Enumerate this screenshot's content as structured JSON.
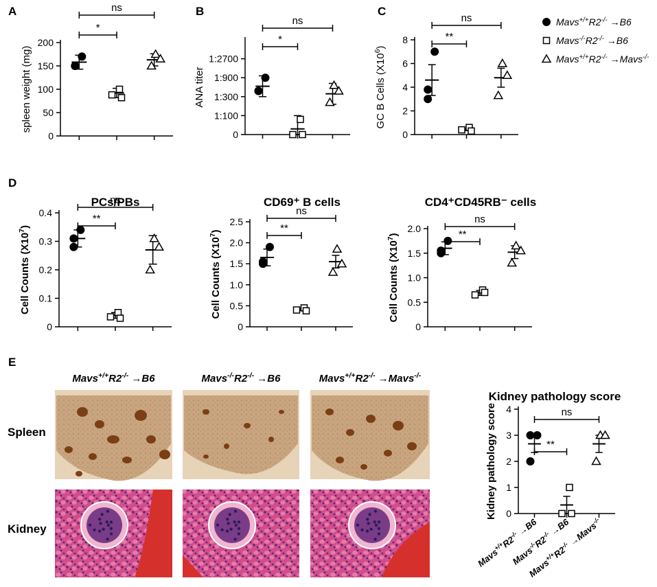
{
  "legend": [
    {
      "marker": "filled-circle",
      "label": "Mavs+/+R2-/- →B6"
    },
    {
      "marker": "open-square",
      "label": "Mavs-/-R2-/- →B6"
    },
    {
      "marker": "open-triangle",
      "label": "Mavs+/+R2-/- →Mavs-/-"
    }
  ],
  "panel_e": {
    "letter": "E",
    "group_headers": [
      "Mavs+/+R2-/- →B6",
      "Mavs-/-R2-/- →B6",
      "Mavs+/+R2-/- →Mavs-/-"
    ],
    "row_labels": [
      "Spleen",
      "Kidney"
    ]
  },
  "colors": {
    "marker": "#000000",
    "spleen_bg": "#e8d7bf",
    "spleen_tissue": "#c7a27c",
    "spleen_follicle": "#7a3f14",
    "kidney_bg": "#c93a7c",
    "kidney_tubule": "#e06a9e",
    "kidney_nuclei": "#4a2a7a",
    "kidney_rbc": "#d8322e"
  },
  "chart_data": [
    {
      "id": "A",
      "type": "scatter",
      "letter": "A",
      "title": "",
      "xlabel": "",
      "ylabel": "spleen weight (mg)",
      "ylim": [
        0,
        200
      ],
      "yticks": [
        0,
        50,
        100,
        150,
        200
      ],
      "ytick_labels": [
        "0",
        "50",
        "100",
        "150",
        "200"
      ],
      "groups": [
        {
          "marker": "filled-circle",
          "values": [
            170,
            150,
            150
          ],
          "mean": 158,
          "sem": 15
        },
        {
          "marker": "open-square",
          "values": [
            100,
            88,
            82
          ],
          "mean": 92,
          "sem": 10
        },
        {
          "marker": "open-triangle",
          "values": [
            175,
            165,
            150
          ],
          "mean": 163,
          "sem": 13
        }
      ],
      "comparisons": [
        {
          "from": 0,
          "to": 1,
          "label": "*"
        },
        {
          "from": 0,
          "to": 2,
          "label": "ns"
        }
      ]
    },
    {
      "id": "B",
      "type": "scatter",
      "letter": "B",
      "title": "",
      "xlabel": "",
      "ylabel": "ANA titer",
      "ylim": [
        0,
        5
      ],
      "yticks": [
        0,
        1,
        2,
        3,
        4
      ],
      "ytick_labels": [
        "0",
        "1:100",
        "1:300",
        "1:900",
        "1:2700"
      ],
      "groups": [
        {
          "marker": "filled-circle",
          "values": [
            3.0,
            2.3,
            2.3
          ],
          "mean": 2.55,
          "sem": 0.55
        },
        {
          "marker": "open-square",
          "values": [
            0.8,
            0.0,
            0.0
          ],
          "mean": 0.3,
          "sem": 0.7
        },
        {
          "marker": "open-triangle",
          "values": [
            2.6,
            2.3,
            1.7
          ],
          "mean": 2.15,
          "sem": 0.55
        }
      ],
      "comparisons": [
        {
          "from": 0,
          "to": 1,
          "label": "*"
        },
        {
          "from": 0,
          "to": 2,
          "label": "ns"
        }
      ]
    },
    {
      "id": "C",
      "type": "scatter",
      "letter": "C",
      "title": "",
      "xlabel": "",
      "ylabel": "GC B Cells (X10^6)",
      "ylim": [
        0,
        8
      ],
      "yticks": [
        0,
        2,
        4,
        6,
        8
      ],
      "ytick_labels": [
        "0",
        "2",
        "4",
        "6",
        "8"
      ],
      "groups": [
        {
          "marker": "filled-circle",
          "values": [
            7.0,
            3.8,
            3.0
          ],
          "mean": 4.6,
          "sem": 1.3
        },
        {
          "marker": "open-square",
          "values": [
            0.6,
            0.4,
            0.3
          ],
          "mean": 0.43,
          "sem": 0.1
        },
        {
          "marker": "open-triangle",
          "values": [
            6.0,
            5.0,
            3.3
          ],
          "mean": 4.8,
          "sem": 0.8
        }
      ],
      "comparisons": [
        {
          "from": 0,
          "to": 1,
          "label": "**"
        },
        {
          "from": 0,
          "to": 2,
          "label": "ns"
        }
      ]
    },
    {
      "id": "D1",
      "type": "scatter",
      "letter": "D",
      "title": "PCs/PBs",
      "xlabel": "",
      "ylabel": "Cell Counts (X10^7)",
      "ylim": [
        0,
        0.4
      ],
      "yticks": [
        0,
        0.1,
        0.2,
        0.3,
        0.4
      ],
      "ytick_labels": [
        "0",
        "0.1",
        "0.2",
        "0.3",
        "0.4"
      ],
      "groups": [
        {
          "marker": "filled-circle",
          "values": [
            0.34,
            0.31,
            0.28
          ],
          "mean": 0.31,
          "sem": 0.03
        },
        {
          "marker": "open-square",
          "values": [
            0.05,
            0.035,
            0.03
          ],
          "mean": 0.04,
          "sem": 0.01
        },
        {
          "marker": "open-triangle",
          "values": [
            0.31,
            0.28,
            0.2
          ],
          "mean": 0.27,
          "sem": 0.05
        }
      ],
      "comparisons": [
        {
          "from": 0,
          "to": 1,
          "label": "**"
        },
        {
          "from": 0,
          "to": 2,
          "label": "ns"
        }
      ]
    },
    {
      "id": "D2",
      "type": "scatter",
      "letter": "",
      "title": "CD69⁺ B cells",
      "xlabel": "",
      "ylabel": "Cell Counts (X10^7)",
      "ylim": [
        0,
        2.5
      ],
      "yticks": [
        0,
        0.5,
        1.0,
        1.5,
        2.0,
        2.5
      ],
      "ytick_labels": [
        "0",
        "0.5",
        "1.0",
        "1.5",
        "2.0",
        "2.5"
      ],
      "groups": [
        {
          "marker": "filled-circle",
          "values": [
            1.9,
            1.55,
            1.5
          ],
          "mean": 1.65,
          "sem": 0.2
        },
        {
          "marker": "open-square",
          "values": [
            0.45,
            0.4,
            0.38
          ],
          "mean": 0.42,
          "sem": 0.03
        },
        {
          "marker": "open-triangle",
          "values": [
            1.85,
            1.5,
            1.3
          ],
          "mean": 1.55,
          "sem": 0.15
        }
      ],
      "comparisons": [
        {
          "from": 0,
          "to": 1,
          "label": "**"
        },
        {
          "from": 0,
          "to": 2,
          "label": "ns"
        }
      ]
    },
    {
      "id": "D3",
      "type": "scatter",
      "letter": "",
      "title": "CD4⁺CD45RB⁻ cells",
      "xlabel": "",
      "ylabel": "Cell Counts (X10^7)",
      "ylim": [
        0,
        2.0
      ],
      "yticks": [
        0,
        0.5,
        1.0,
        1.5,
        2.0
      ],
      "ytick_labels": [
        "0",
        "0.5",
        "1.0",
        "1.5",
        "2.0"
      ],
      "groups": [
        {
          "marker": "filled-circle",
          "values": [
            1.75,
            1.5,
            1.55
          ],
          "mean": 1.6,
          "sem": 0.13
        },
        {
          "marker": "open-square",
          "values": [
            0.75,
            0.65,
            0.7
          ],
          "mean": 0.69,
          "sem": 0.05
        },
        {
          "marker": "open-triangle",
          "values": [
            1.65,
            1.55,
            1.3
          ],
          "mean": 1.52,
          "sem": 0.13
        }
      ],
      "comparisons": [
        {
          "from": 0,
          "to": 1,
          "label": "**"
        },
        {
          "from": 0,
          "to": 2,
          "label": "ns"
        }
      ]
    },
    {
      "id": "E",
      "type": "scatter",
      "letter": "",
      "title": "Kidney pathology score",
      "xlabel": "",
      "ylabel": "Kidney pathology score",
      "ylim": [
        0,
        4
      ],
      "yticks": [
        0,
        1,
        2,
        3,
        4
      ],
      "ytick_labels": [
        "0",
        "1",
        "2",
        "3",
        "4"
      ],
      "xtick_labels": [
        "Mavs+/+R2-/- →B6",
        "Mavs-/-R2-/- →B6",
        "Mavs+/+R2-/- →Mavs-/-"
      ],
      "groups": [
        {
          "marker": "filled-circle",
          "values": [
            3,
            3,
            2
          ],
          "mean": 2.67,
          "sem": 0.33
        },
        {
          "marker": "open-square",
          "values": [
            1,
            0,
            0
          ],
          "mean": 0.33,
          "sem": 0.33
        },
        {
          "marker": "open-triangle",
          "values": [
            3,
            3,
            2
          ],
          "mean": 2.67,
          "sem": 0.33
        }
      ],
      "comparisons": [
        {
          "from": 0,
          "to": 1,
          "label": "**"
        },
        {
          "from": 0,
          "to": 2,
          "label": "ns"
        }
      ]
    }
  ]
}
